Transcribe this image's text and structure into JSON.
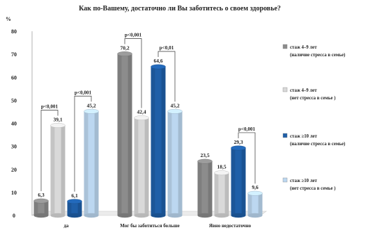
{
  "chart_data": {
    "type": "bar",
    "title": "Как по-Вашему, достаточно ли Вы заботитесь о своем здоровье?",
    "ylabel": "%",
    "ylim": [
      0,
      80
    ],
    "yticks": [
      "0",
      "10",
      "20",
      "30",
      "40",
      "50",
      "60",
      "70",
      "80"
    ],
    "grid": false,
    "legend_position": "right",
    "categories": [
      "да",
      "Мог бы заботиться больше",
      "Явно недостаточно"
    ],
    "series": [
      {
        "name_line1": "стаж 4–9 лет",
        "name_line2": "(наличие стресса в семье)",
        "color": "#8c8c8c",
        "values": [
          6.3,
          70.2,
          23.5
        ],
        "labels": [
          "6,3",
          "70,2",
          "23,5"
        ]
      },
      {
        "name_line1": "стаж 4–9 лет",
        "name_line2": "(нет стресса в семье )",
        "color": "#d9d9d9",
        "values": [
          39.1,
          42.4,
          18.5
        ],
        "labels": [
          "39,1",
          "42,4",
          "18,5"
        ]
      },
      {
        "name_line1": "стаж ≥10 лет",
        "name_line2": "(наличие стресса в семье)",
        "color": "#1f5fa8",
        "values": [
          6.1,
          64.6,
          29.3
        ],
        "labels": [
          "6,1",
          "64,6",
          "29,3"
        ]
      },
      {
        "name_line1": "стаж ≥10 лет",
        "name_line2": "(нет стресса в семье )",
        "color": "#bcd7f0",
        "values": [
          45.2,
          45.2,
          9.6
        ],
        "labels": [
          "45,2",
          "45,2",
          "9,6"
        ]
      }
    ],
    "annotations": [
      {
        "text": "p<0,001",
        "category": 0,
        "from_series": 0,
        "to_series": 1
      },
      {
        "text": "p<0,001",
        "category": 0,
        "from_series": 2,
        "to_series": 3
      },
      {
        "text": "p<0,001",
        "category": 1,
        "from_series": 0,
        "to_series": 1
      },
      {
        "text": "p<0,01",
        "category": 1,
        "from_series": 2,
        "to_series": 3
      },
      {
        "text": "p<0,001",
        "category": 2,
        "from_series": 2,
        "to_series": 3
      }
    ]
  }
}
